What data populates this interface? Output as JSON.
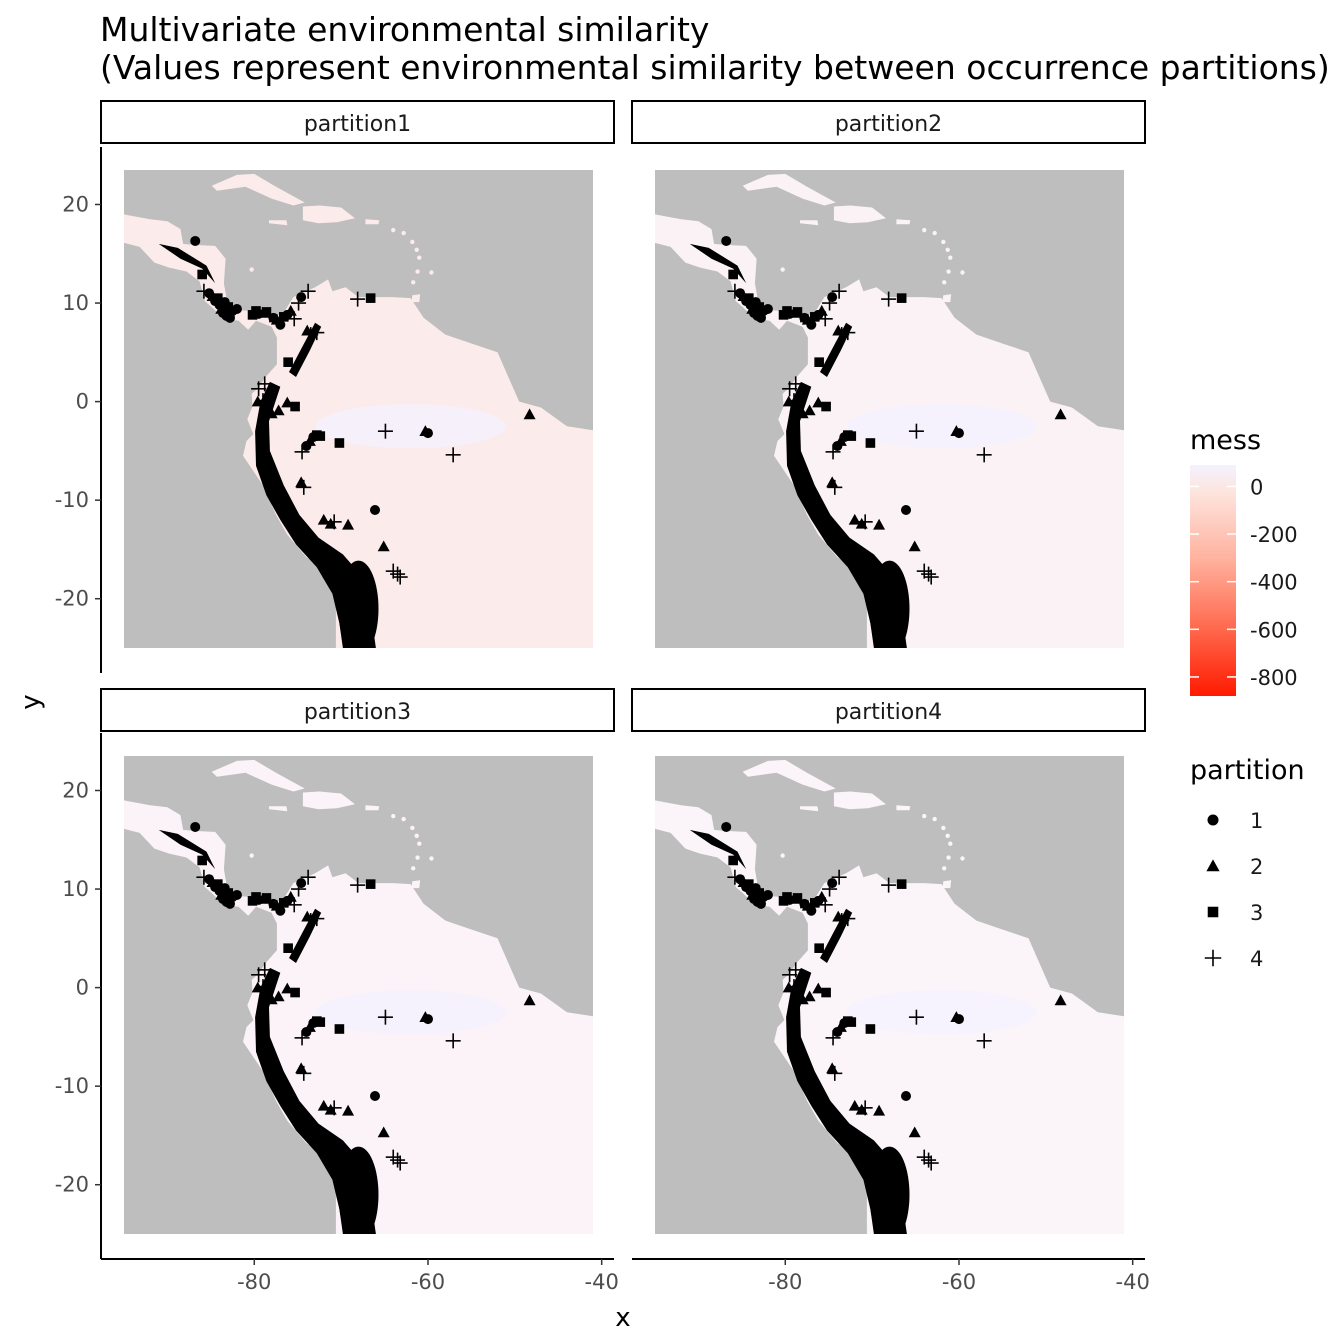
{
  "chart_data": {
    "type": "faceted-raster-scatter",
    "title": "Multivariate environmental similarity",
    "subtitle": "(Values represent environmental similarity between occurrence partitions)",
    "xlabel": "x",
    "ylabel": "y",
    "xlim": [
      -95,
      -41
    ],
    "ylim": [
      -25,
      23.5
    ],
    "x_ticks": [
      -80,
      -60,
      -40
    ],
    "x_tick_labels": [
      "-80",
      "-60",
      "-40"
    ],
    "y_ticks": [
      20,
      10,
      0,
      -10,
      -20
    ],
    "y_tick_labels": [
      "20",
      "10",
      "0",
      "-10",
      "-20"
    ],
    "colors": {
      "ocean": "#bebebe",
      "land_high": "#f5f3ff",
      "land_low": "#ff2200",
      "points": "#000000"
    },
    "fill_legend": {
      "title": "mess",
      "breaks": [
        0,
        -200,
        -400,
        -600,
        -800
      ],
      "labels": [
        "0",
        "-200",
        "-400",
        "-600",
        "-800"
      ],
      "range": [
        -880,
        90
      ]
    },
    "shape_legend": {
      "title": "partition",
      "entries": [
        {
          "label": "1",
          "shape": "circle"
        },
        {
          "label": "2",
          "shape": "triangle"
        },
        {
          "label": "3",
          "shape": "square"
        },
        {
          "label": "4",
          "shape": "plus"
        }
      ]
    },
    "facets": [
      {
        "label": "partition1",
        "andes_intensity": 1.0
      },
      {
        "label": "partition2",
        "andes_intensity": 0.45
      },
      {
        "label": "partition3",
        "andes_intensity": 0.32
      },
      {
        "label": "partition4",
        "andes_intensity": 0.3
      }
    ],
    "points": [
      {
        "x": -86.8,
        "y": 16.3,
        "shape": "circle"
      },
      {
        "x": -86.0,
        "y": 12.9,
        "shape": "square"
      },
      {
        "x": -85.8,
        "y": 11.2,
        "shape": "plus"
      },
      {
        "x": -85.2,
        "y": 11.0,
        "shape": "circle"
      },
      {
        "x": -84.8,
        "y": 10.7,
        "shape": "triangle"
      },
      {
        "x": -84.5,
        "y": 10.2,
        "shape": "circle"
      },
      {
        "x": -84.2,
        "y": 10.5,
        "shape": "square"
      },
      {
        "x": -84.0,
        "y": 9.8,
        "shape": "circle"
      },
      {
        "x": -83.8,
        "y": 9.4,
        "shape": "triangle"
      },
      {
        "x": -83.6,
        "y": 9.0,
        "shape": "circle"
      },
      {
        "x": -83.4,
        "y": 10.1,
        "shape": "circle"
      },
      {
        "x": -83.2,
        "y": 8.7,
        "shape": "circle"
      },
      {
        "x": -83.0,
        "y": 9.6,
        "shape": "square"
      },
      {
        "x": -82.8,
        "y": 8.5,
        "shape": "circle"
      },
      {
        "x": -82.5,
        "y": 9.2,
        "shape": "circle"
      },
      {
        "x": -82.0,
        "y": 9.4,
        "shape": "circle"
      },
      {
        "x": -80.2,
        "y": 8.8,
        "shape": "square"
      },
      {
        "x": -79.8,
        "y": 9.2,
        "shape": "square"
      },
      {
        "x": -79.5,
        "y": 8.9,
        "shape": "circle"
      },
      {
        "x": -79.0,
        "y": 9.0,
        "shape": "triangle"
      },
      {
        "x": -78.6,
        "y": 9.1,
        "shape": "square"
      },
      {
        "x": -78.2,
        "y": 8.8,
        "shape": "plus"
      },
      {
        "x": -77.8,
        "y": 8.5,
        "shape": "circle"
      },
      {
        "x": -77.4,
        "y": 8.3,
        "shape": "triangle"
      },
      {
        "x": -77.0,
        "y": 7.8,
        "shape": "circle"
      },
      {
        "x": -76.6,
        "y": 8.6,
        "shape": "square"
      },
      {
        "x": -76.2,
        "y": 8.8,
        "shape": "circle"
      },
      {
        "x": -75.8,
        "y": 9.2,
        "shape": "triangle"
      },
      {
        "x": -75.4,
        "y": 8.4,
        "shape": "plus"
      },
      {
        "x": -74.9,
        "y": 10.0,
        "shape": "plus"
      },
      {
        "x": -74.6,
        "y": 10.6,
        "shape": "circle"
      },
      {
        "x": -73.8,
        "y": 11.2,
        "shape": "plus"
      },
      {
        "x": -73.9,
        "y": 7.2,
        "shape": "triangle"
      },
      {
        "x": -73.5,
        "y": 6.8,
        "shape": "plus"
      },
      {
        "x": -72.8,
        "y": 7.0,
        "shape": "plus"
      },
      {
        "x": -68.1,
        "y": 10.4,
        "shape": "plus"
      },
      {
        "x": -66.6,
        "y": 10.5,
        "shape": "square"
      },
      {
        "x": -76.1,
        "y": 4.0,
        "shape": "square"
      },
      {
        "x": -79.5,
        "y": 1.3,
        "shape": "plus"
      },
      {
        "x": -78.8,
        "y": 1.8,
        "shape": "plus"
      },
      {
        "x": -79.6,
        "y": 0.0,
        "shape": "triangle"
      },
      {
        "x": -79.0,
        "y": 0.1,
        "shape": "plus"
      },
      {
        "x": -78.0,
        "y": -1.2,
        "shape": "triangle"
      },
      {
        "x": -77.2,
        "y": -0.9,
        "shape": "triangle"
      },
      {
        "x": -76.2,
        "y": -0.1,
        "shape": "triangle"
      },
      {
        "x": -75.3,
        "y": -0.5,
        "shape": "square"
      },
      {
        "x": -74.5,
        "y": -5.1,
        "shape": "plus"
      },
      {
        "x": -74.0,
        "y": -4.5,
        "shape": "circle"
      },
      {
        "x": -73.6,
        "y": -4.0,
        "shape": "triangle"
      },
      {
        "x": -73.2,
        "y": -3.6,
        "shape": "circle"
      },
      {
        "x": -72.8,
        "y": -3.4,
        "shape": "square"
      },
      {
        "x": -72.4,
        "y": -3.5,
        "shape": "square"
      },
      {
        "x": -70.2,
        "y": -4.2,
        "shape": "square"
      },
      {
        "x": -64.9,
        "y": -3.0,
        "shape": "plus"
      },
      {
        "x": -60.3,
        "y": -3.0,
        "shape": "triangle"
      },
      {
        "x": -60.0,
        "y": -3.2,
        "shape": "circle"
      },
      {
        "x": -57.1,
        "y": -5.4,
        "shape": "plus"
      },
      {
        "x": -48.3,
        "y": -1.3,
        "shape": "triangle"
      },
      {
        "x": -74.6,
        "y": -8.2,
        "shape": "triangle"
      },
      {
        "x": -74.3,
        "y": -8.7,
        "shape": "plus"
      },
      {
        "x": -72.0,
        "y": -12.0,
        "shape": "triangle"
      },
      {
        "x": -71.2,
        "y": -12.4,
        "shape": "triangle"
      },
      {
        "x": -70.8,
        "y": -12.2,
        "shape": "plus"
      },
      {
        "x": -69.2,
        "y": -12.5,
        "shape": "triangle"
      },
      {
        "x": -66.1,
        "y": -11.0,
        "shape": "circle"
      },
      {
        "x": -65.1,
        "y": -14.7,
        "shape": "triangle"
      },
      {
        "x": -64.0,
        "y": -17.2,
        "shape": "plus"
      },
      {
        "x": -63.5,
        "y": -17.5,
        "shape": "plus"
      },
      {
        "x": -63.2,
        "y": -17.8,
        "shape": "plus"
      }
    ]
  }
}
